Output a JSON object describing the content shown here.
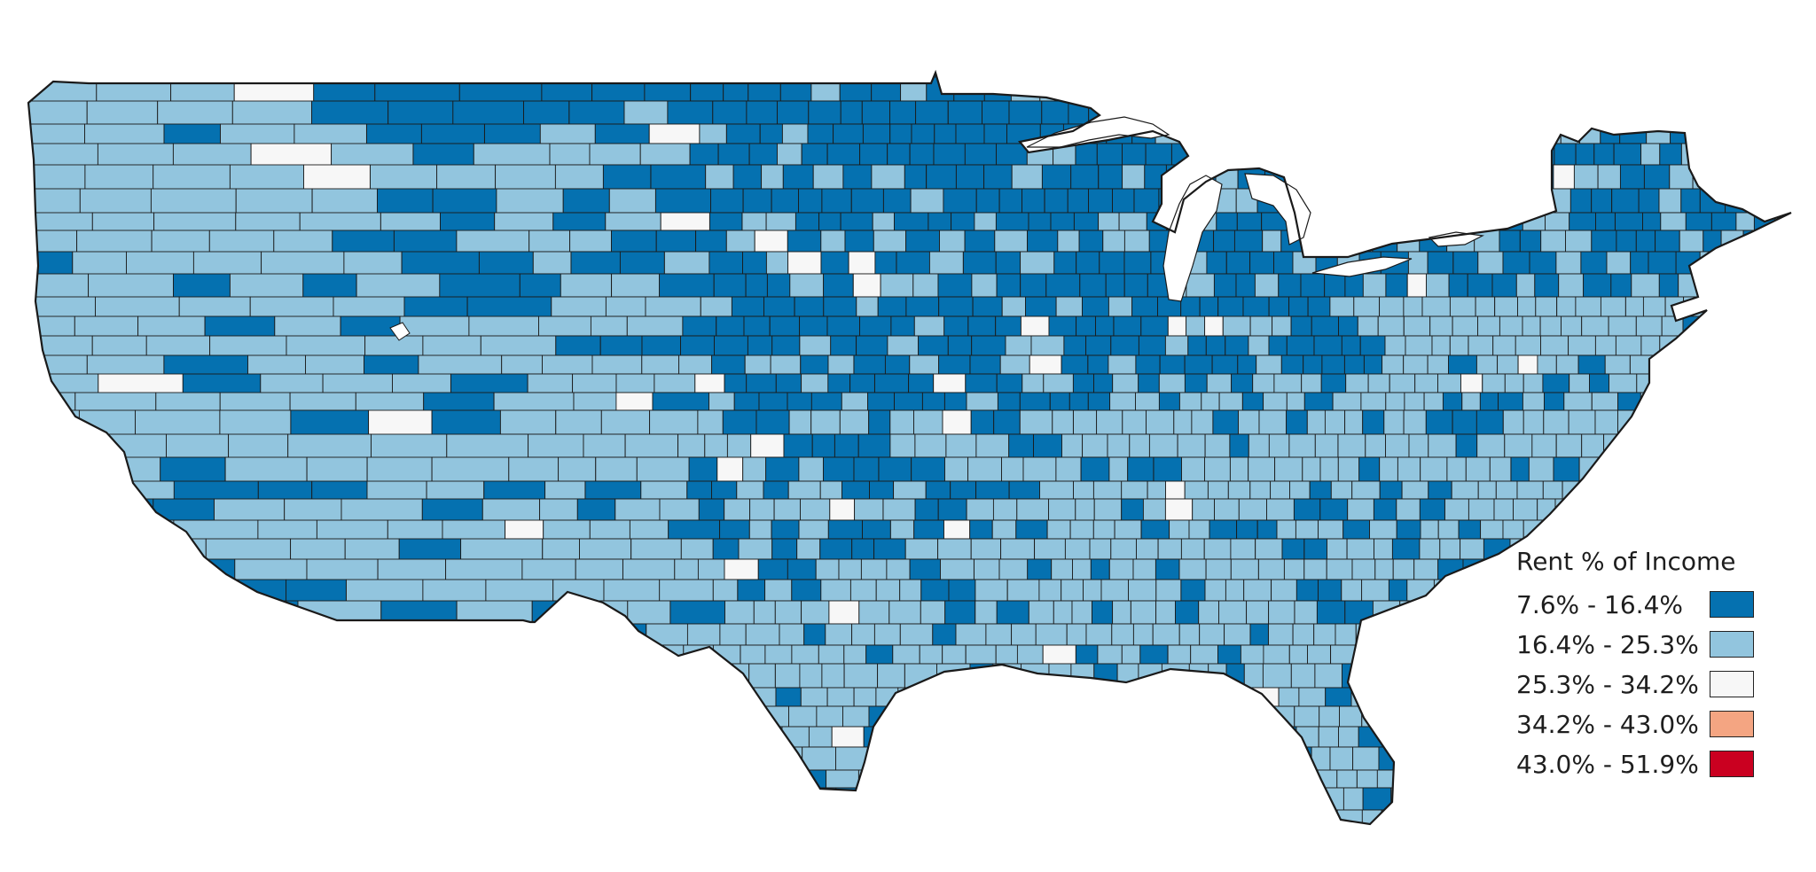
{
  "legend": {
    "title": "Rent % of Income",
    "classes": [
      {
        "label": "7.6% - 16.4%",
        "color": "#0571b0"
      },
      {
        "label": "16.4% - 25.3%",
        "color": "#92c5de"
      },
      {
        "label": "25.3% - 34.2%",
        "color": "#f7f7f7"
      },
      {
        "label": "34.2% - 43.0%",
        "color": "#f4a582"
      },
      {
        "label": "43.0% - 51.9%",
        "color": "#ca0020"
      }
    ]
  },
  "map": {
    "region": "contiguous-united-states",
    "unit": "county",
    "boundary_color": "#1a1a1a"
  }
}
